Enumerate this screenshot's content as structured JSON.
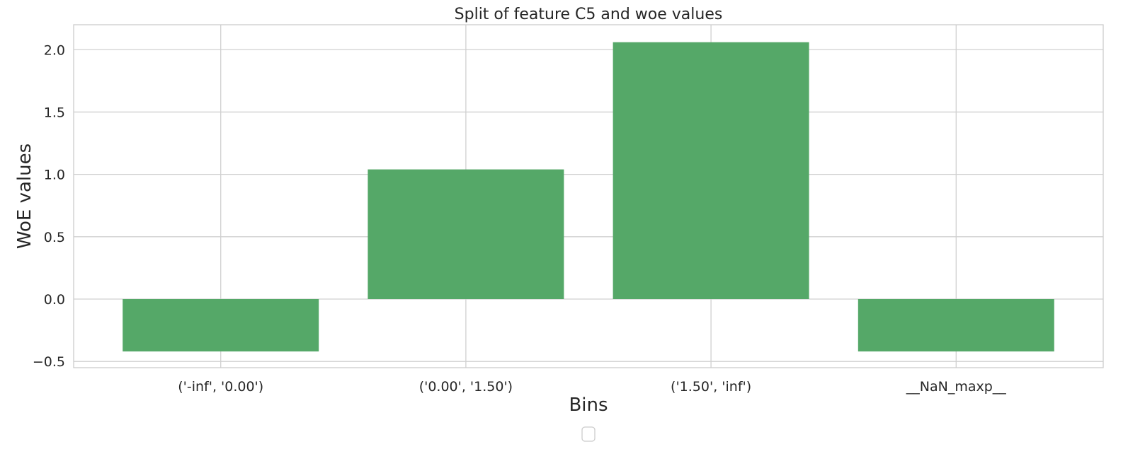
{
  "chart_data": {
    "type": "bar",
    "title": "Split of feature C5 and woe values",
    "xlabel": "Bins",
    "ylabel": "WoE values",
    "categories": [
      "('-inf', '0.00')",
      "('0.00', '1.50')",
      "('1.50', 'inf')",
      "__NaN_maxp__"
    ],
    "values": [
      -0.42,
      1.04,
      2.06,
      -0.42
    ],
    "ylim": [
      -0.55,
      2.2
    ],
    "yticks": [
      -0.5,
      0.0,
      0.5,
      1.0,
      1.5,
      2.0
    ],
    "ytick_labels": [
      "−0.5",
      "0.0",
      "0.5",
      "1.0",
      "1.5",
      "2.0"
    ],
    "grid": true,
    "bar_color": "#55a868",
    "legend": {
      "placement": "bottom-center",
      "entries": []
    }
  }
}
